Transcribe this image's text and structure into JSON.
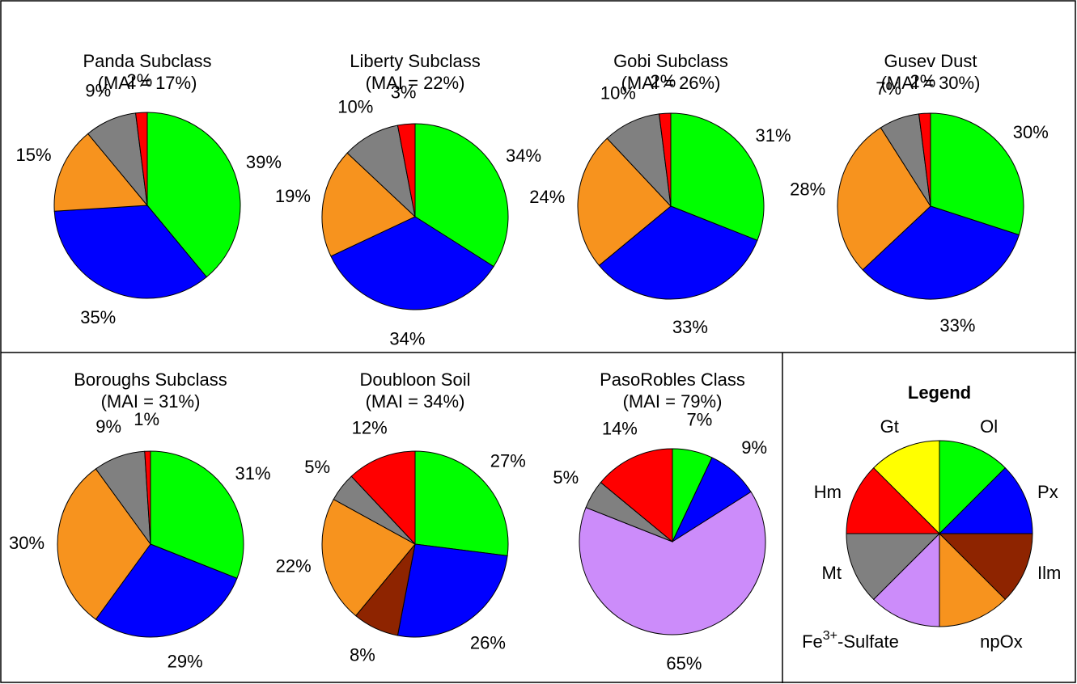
{
  "chart_data": [
    {
      "type": "pie",
      "title": "Panda Subclass",
      "subtitle": "(MAI = 17%)",
      "values": [
        39,
        35,
        15,
        9,
        2
      ],
      "value_labels": [
        "39%",
        "35%",
        "15%",
        "9%",
        "2%"
      ],
      "colors": [
        "#00ff00",
        "#0000ff",
        "#f7931e",
        "#808080",
        "#ff0000"
      ]
    },
    {
      "type": "pie",
      "title": "Liberty Subclass",
      "subtitle": "(MAI = 22%)",
      "values": [
        34,
        34,
        19,
        10,
        3
      ],
      "value_labels": [
        "34%",
        "34%",
        "19%",
        "10%",
        "3%"
      ],
      "colors": [
        "#00ff00",
        "#0000ff",
        "#f7931e",
        "#808080",
        "#ff0000"
      ]
    },
    {
      "type": "pie",
      "title": "Gobi Subclass",
      "subtitle": "(MAI = 26%)",
      "values": [
        31,
        33,
        24,
        10,
        2
      ],
      "value_labels": [
        "31%",
        "33%",
        "24%",
        "10%",
        "2%"
      ],
      "colors": [
        "#00ff00",
        "#0000ff",
        "#f7931e",
        "#808080",
        "#ff0000"
      ]
    },
    {
      "type": "pie",
      "title": "Gusev Dust",
      "subtitle": "(MAI = 30%)",
      "values": [
        30,
        33,
        28,
        7,
        2
      ],
      "value_labels": [
        "30%",
        "33%",
        "28%",
        "7%",
        "2%"
      ],
      "colors": [
        "#00ff00",
        "#0000ff",
        "#f7931e",
        "#808080",
        "#ff0000"
      ]
    },
    {
      "type": "pie",
      "title": "Boroughs Subclass",
      "subtitle": "(MAI = 31%)",
      "values": [
        31,
        29,
        30,
        9,
        1
      ],
      "value_labels": [
        "31%",
        "29%",
        "30%",
        "9%",
        "1%"
      ],
      "colors": [
        "#00ff00",
        "#0000ff",
        "#f7931e",
        "#808080",
        "#ff0000"
      ]
    },
    {
      "type": "pie",
      "title": "Doubloon Soil",
      "subtitle": "(MAI = 34%)",
      "values": [
        27,
        26,
        8,
        22,
        5,
        12
      ],
      "value_labels": [
        "27%",
        "26%",
        "8%",
        "22%",
        "5%",
        "12%"
      ],
      "colors": [
        "#00ff00",
        "#0000ff",
        "#8e2400",
        "#f7931e",
        "#808080",
        "#ff0000"
      ]
    },
    {
      "type": "pie",
      "title": "PasoRobles Class",
      "subtitle": "(MAI = 79%)",
      "values": [
        7,
        9,
        65,
        5,
        14
      ],
      "value_labels": [
        "7%",
        "9%",
        "65%",
        "5%",
        "14%"
      ],
      "colors": [
        "#00ff00",
        "#0000ff",
        "#cc8cfa",
        "#808080",
        "#ff0000"
      ]
    }
  ],
  "legend": {
    "title": "Legend",
    "items": [
      {
        "label": [
          "Ol"
        ],
        "color": "#00ff00"
      },
      {
        "label": [
          "Px"
        ],
        "color": "#0000ff"
      },
      {
        "label": [
          "Ilm"
        ],
        "color": "#8e2400"
      },
      {
        "label": [
          "npOx"
        ],
        "color": "#f7931e"
      },
      {
        "label": [
          "Fe",
          "3+",
          "-Sulfate"
        ],
        "color": "#cc8cfa"
      },
      {
        "label": [
          "Mt"
        ],
        "color": "#808080"
      },
      {
        "label": [
          "Hm"
        ],
        "color": "#ff0000"
      },
      {
        "label": [
          "Gt"
        ],
        "color": "#ffff00"
      }
    ]
  }
}
